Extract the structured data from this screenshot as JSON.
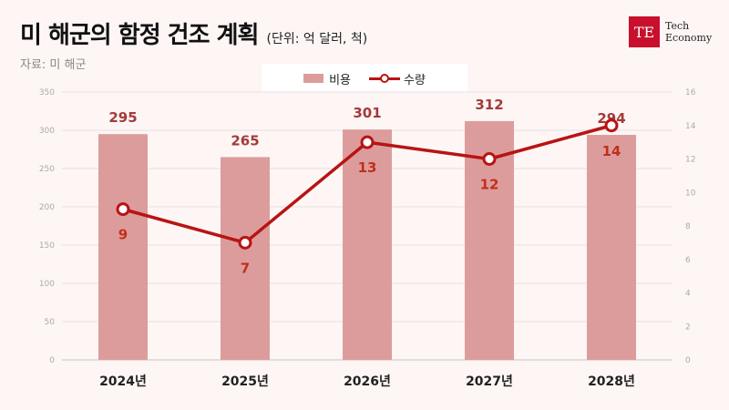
{
  "header": {
    "title": "미 해군의 함정 건조 계획",
    "unit": "(단위: 억 달러, 척)",
    "source": "자료: 미 해군"
  },
  "logo": {
    "mark": "TE",
    "line1": "Tech",
    "line2": "Economy"
  },
  "legend": {
    "bar_label": "비용",
    "line_label": "수량"
  },
  "colors": {
    "bar": "#dd9c9c",
    "line": "#b81414",
    "bar_label": "#a33a3a",
    "line_label": "#c0301c",
    "brand": "#c8102e"
  },
  "chart_data": {
    "type": "bar",
    "categories": [
      "2024년",
      "2025년",
      "2026년",
      "2027년",
      "2028년"
    ],
    "series": [
      {
        "name": "비용",
        "type": "bar",
        "axis": "left",
        "values": [
          295,
          265,
          301,
          312,
          294
        ]
      },
      {
        "name": "수량",
        "type": "line",
        "axis": "right",
        "values": [
          9,
          7,
          13,
          12,
          14
        ]
      }
    ],
    "y_left": {
      "min": 0,
      "max": 350,
      "ticks": [
        0,
        50,
        100,
        150,
        200,
        250,
        300,
        350
      ]
    },
    "y_right": {
      "min": 0,
      "max": 16,
      "ticks": [
        0,
        2,
        4,
        6,
        8,
        10,
        12,
        14,
        16
      ]
    },
    "grid": true,
    "legend_position": "top-center"
  }
}
